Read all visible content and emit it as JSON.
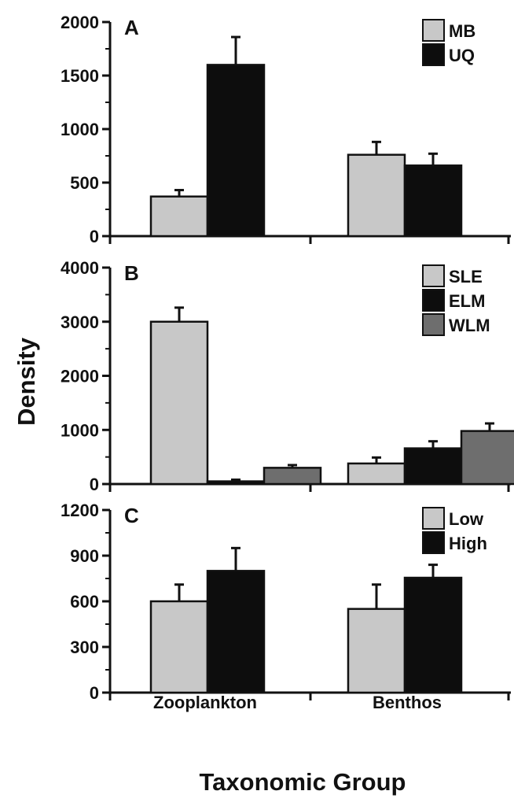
{
  "chart_data": [
    {
      "type": "bar",
      "panel_label": "A",
      "categories": [
        "Zooplankton",
        "Benthos"
      ],
      "series": [
        {
          "name": "MB",
          "values": [
            370,
            760
          ],
          "errors": [
            60,
            120
          ],
          "color": "#c8c8c8"
        },
        {
          "name": "UQ",
          "values": [
            1600,
            660
          ],
          "errors": [
            260,
            110
          ],
          "color": "#0d0d0d"
        }
      ],
      "ylim": [
        0,
        2000
      ],
      "yticks": [
        "0",
        "500",
        "1000",
        "1500",
        "2000"
      ],
      "legend_position": "top-right"
    },
    {
      "type": "bar",
      "panel_label": "B",
      "categories": [
        "Zooplankton",
        "Benthos"
      ],
      "series": [
        {
          "name": "SLE",
          "values": [
            3000,
            380
          ],
          "errors": [
            260,
            110
          ],
          "color": "#c8c8c8"
        },
        {
          "name": "ELM",
          "values": [
            50,
            660
          ],
          "errors": [
            30,
            130
          ],
          "color": "#0d0d0d"
        },
        {
          "name": "WLM",
          "values": [
            300,
            980
          ],
          "errors": [
            50,
            140
          ],
          "color": "#6e6e6e"
        }
      ],
      "ylim": [
        0,
        4000
      ],
      "yticks": [
        "0",
        "1000",
        "2000",
        "3000",
        "4000"
      ],
      "legend_position": "top-right"
    },
    {
      "type": "bar",
      "panel_label": "C",
      "categories": [
        "Zooplankton",
        "Benthos"
      ],
      "series": [
        {
          "name": "Low",
          "values": [
            600,
            550
          ],
          "errors": [
            110,
            160
          ],
          "color": "#c8c8c8"
        },
        {
          "name": "High",
          "values": [
            800,
            755
          ],
          "errors": [
            150,
            85
          ],
          "color": "#0d0d0d"
        }
      ],
      "ylim": [
        0,
        1200
      ],
      "yticks": [
        "0",
        "300",
        "600",
        "900",
        "1200"
      ],
      "legend_position": "top-right"
    }
  ],
  "ylabel": "Density",
  "xlabel": "Taxonomic Group",
  "category_labels": [
    "Zooplankton",
    "Benthos"
  ]
}
